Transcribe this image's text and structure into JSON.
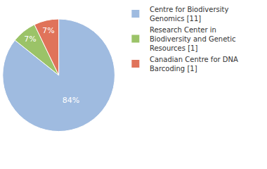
{
  "chart_data": {
    "type": "pie",
    "categories": [
      "Centre for Biodiversity Genomics [11]",
      "Research Center in Biodiversity and Genetic Resources [1]",
      "Canadian Centre for DNA Barcoding [1]"
    ],
    "values": [
      84,
      7,
      7
    ],
    "value_labels": [
      "84%",
      "7%",
      "7%"
    ],
    "colors": [
      "#9fbbe0",
      "#9bc368",
      "#e0735a"
    ],
    "data_labels": true,
    "legend": "top right"
  }
}
